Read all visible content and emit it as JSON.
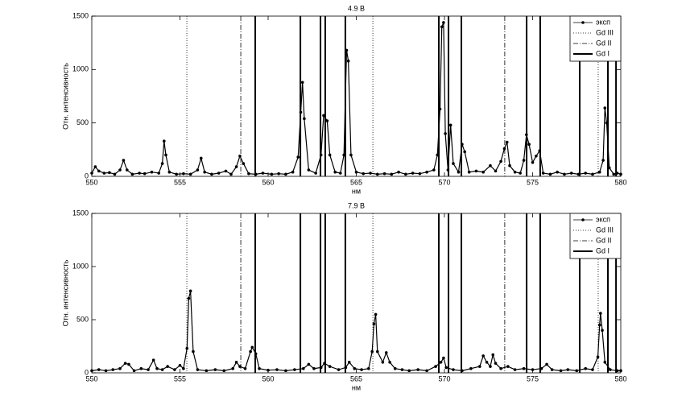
{
  "chart_data": [
    {
      "type": "line",
      "title": "4.9 В",
      "xlabel": "нм",
      "ylabel": "Отн. интенсивность",
      "xlim": [
        550,
        580
      ],
      "ylim": [
        0,
        1500
      ],
      "xticks": [
        550,
        555,
        560,
        565,
        570,
        575,
        580
      ],
      "yticks": [
        0,
        500,
        1000,
        1500
      ],
      "series": [
        {
          "name": "эксп",
          "color": "#000000",
          "marker": "circle",
          "x": [
            550.0,
            550.2,
            550.4,
            550.7,
            551.0,
            551.3,
            551.6,
            551.8,
            552.0,
            552.3,
            552.7,
            553.0,
            553.4,
            553.8,
            554.0,
            554.1,
            554.2,
            554.4,
            554.8,
            555.2,
            555.6,
            556.0,
            556.2,
            556.4,
            556.8,
            557.2,
            557.6,
            557.9,
            558.2,
            558.4,
            558.6,
            558.9,
            559.3,
            559.7,
            560.2,
            560.6,
            561.0,
            561.4,
            561.7,
            561.85,
            561.95,
            562.05,
            562.3,
            562.7,
            563.0,
            563.15,
            563.35,
            563.5,
            563.8,
            564.1,
            564.3,
            564.45,
            564.55,
            564.7,
            565.0,
            565.4,
            565.8,
            566.2,
            566.6,
            567.0,
            567.4,
            567.8,
            568.2,
            568.6,
            569.0,
            569.4,
            569.6,
            569.75,
            569.85,
            569.95,
            570.05,
            570.2,
            570.35,
            570.5,
            570.8,
            571.0,
            571.15,
            571.4,
            571.8,
            572.2,
            572.6,
            572.9,
            573.2,
            573.4,
            573.55,
            573.7,
            574.0,
            574.3,
            574.5,
            574.65,
            574.8,
            575.0,
            575.2,
            575.4,
            575.6,
            576.0,
            576.4,
            576.8,
            577.2,
            577.6,
            578.0,
            578.4,
            578.8,
            579.0,
            579.1,
            579.2,
            579.35,
            579.6,
            579.8,
            580.0
          ],
          "values": [
            30,
            90,
            50,
            30,
            35,
            20,
            60,
            150,
            60,
            20,
            30,
            25,
            40,
            30,
            120,
            330,
            200,
            40,
            20,
            25,
            20,
            60,
            170,
            40,
            20,
            30,
            50,
            20,
            90,
            190,
            120,
            25,
            20,
            30,
            20,
            25,
            20,
            40,
            180,
            600,
            880,
            540,
            60,
            30,
            200,
            570,
            520,
            200,
            40,
            30,
            200,
            1180,
            1080,
            200,
            40,
            25,
            30,
            20,
            25,
            20,
            40,
            20,
            30,
            25,
            40,
            60,
            200,
            630,
            1400,
            1440,
            400,
            60,
            480,
            120,
            40,
            300,
            230,
            40,
            50,
            40,
            100,
            50,
            140,
            260,
            320,
            100,
            40,
            30,
            150,
            390,
            300,
            130,
            190,
            240,
            30,
            20,
            40,
            20,
            30,
            20,
            30,
            20,
            40,
            150,
            640,
            500,
            80,
            20,
            30,
            20
          ]
        },
        {
          "name": "Gd III",
          "color": "#000000",
          "type": "vline",
          "linestyle": "dotted",
          "x": [
            555.39,
            565.94,
            578.72
          ]
        },
        {
          "name": "Gd II",
          "color": "#000000",
          "type": "vline",
          "linestyle": "dashdot",
          "x": [
            558.45,
            573.42
          ]
        },
        {
          "name": "Gd I",
          "color": "#000000",
          "type": "vline",
          "linestyle": "solid",
          "linewidth": 2,
          "x": [
            559.27,
            561.83,
            562.97,
            563.24,
            564.38,
            569.68,
            570.23,
            570.96,
            574.66,
            575.43,
            577.67,
            579.27,
            579.73
          ]
        }
      ],
      "legend": "upper right"
    },
    {
      "type": "line",
      "title": "7.9 В",
      "xlabel": "нм",
      "ylabel": "Отн. интенсивность",
      "xlim": [
        550,
        580
      ],
      "ylim": [
        0,
        1500
      ],
      "xticks": [
        550,
        555,
        560,
        565,
        570,
        575,
        580
      ],
      "yticks": [
        0,
        500,
        1000,
        1500
      ],
      "series": [
        {
          "name": "эксп",
          "color": "#000000",
          "marker": "circle",
          "x": [
            550.0,
            550.4,
            550.8,
            551.2,
            551.6,
            551.9,
            552.1,
            552.4,
            552.8,
            553.2,
            553.5,
            553.7,
            554.0,
            554.3,
            554.7,
            555.0,
            555.2,
            555.4,
            555.5,
            555.6,
            555.75,
            556.0,
            556.5,
            557.0,
            557.5,
            558.0,
            558.2,
            558.4,
            558.7,
            559.0,
            559.1,
            559.3,
            559.5,
            560.0,
            560.5,
            561.0,
            561.5,
            562.0,
            562.3,
            562.6,
            563.0,
            563.2,
            563.5,
            564.0,
            564.4,
            564.6,
            564.9,
            565.3,
            565.7,
            565.9,
            566.0,
            566.1,
            566.2,
            566.5,
            566.7,
            566.9,
            567.2,
            567.6,
            568.0,
            568.5,
            569.0,
            569.5,
            569.8,
            569.95,
            570.1,
            570.5,
            571.0,
            571.5,
            572.0,
            572.2,
            572.4,
            572.6,
            572.75,
            572.9,
            573.2,
            573.6,
            574.0,
            574.5,
            575.0,
            575.5,
            575.8,
            576.1,
            576.6,
            577.0,
            577.5,
            578.0,
            578.4,
            578.7,
            578.8,
            578.85,
            578.95,
            579.1,
            579.4,
            579.8,
            580.0
          ],
          "values": [
            20,
            30,
            20,
            30,
            40,
            90,
            80,
            20,
            40,
            30,
            120,
            40,
            30,
            60,
            30,
            70,
            40,
            230,
            700,
            770,
            200,
            30,
            20,
            30,
            20,
            40,
            100,
            60,
            40,
            200,
            240,
            180,
            40,
            25,
            30,
            20,
            30,
            40,
            80,
            40,
            50,
            90,
            60,
            30,
            50,
            100,
            40,
            30,
            40,
            200,
            460,
            550,
            200,
            100,
            190,
            100,
            40,
            30,
            20,
            30,
            20,
            60,
            100,
            140,
            50,
            30,
            20,
            40,
            60,
            160,
            100,
            60,
            170,
            90,
            40,
            60,
            30,
            40,
            30,
            40,
            80,
            30,
            20,
            30,
            20,
            40,
            30,
            150,
            450,
            560,
            400,
            100,
            30,
            20,
            20
          ]
        },
        {
          "name": "Gd III",
          "color": "#000000",
          "type": "vline",
          "linestyle": "dotted",
          "x": [
            555.39,
            565.94,
            578.72
          ]
        },
        {
          "name": "Gd II",
          "color": "#000000",
          "type": "vline",
          "linestyle": "dashdot",
          "x": [
            558.45,
            573.42
          ]
        },
        {
          "name": "Gd I",
          "color": "#000000",
          "type": "vline",
          "linestyle": "solid",
          "linewidth": 2,
          "x": [
            559.27,
            561.83,
            562.97,
            563.24,
            564.38,
            569.68,
            570.23,
            570.96,
            574.66,
            575.43,
            577.67,
            579.27,
            579.73
          ]
        }
      ],
      "legend": "upper right"
    }
  ]
}
